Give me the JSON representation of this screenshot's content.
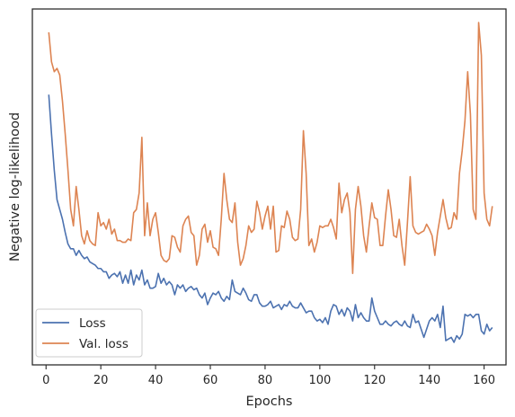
{
  "chart_data": {
    "type": "line",
    "xlabel": "Epochs",
    "ylabel": "Negative log-likelihood",
    "xlim": [
      -5,
      168
    ],
    "ylim": [
      0,
      1
    ],
    "xticks": [
      0,
      20,
      40,
      60,
      80,
      100,
      120,
      140,
      160
    ],
    "yticks_labeled": false,
    "grid": false,
    "legend": "lower-left",
    "colors": {
      "Loss": "#4c72b0",
      "Val. loss": "#dd8452"
    },
    "series": [
      {
        "name": "Loss",
        "points": [
          [
            1,
            0.78
          ],
          [
            2,
            0.66
          ],
          [
            3,
            0.55
          ],
          [
            4,
            0.46
          ],
          [
            5,
            0.43
          ],
          [
            6,
            0.4
          ],
          [
            7,
            0.36
          ],
          [
            8,
            0.325
          ],
          [
            9,
            0.31
          ],
          [
            10,
            0.31
          ],
          [
            11,
            0.29
          ],
          [
            12,
            0.305
          ],
          [
            13,
            0.29
          ],
          [
            14,
            0.28
          ],
          [
            15,
            0.285
          ],
          [
            16,
            0.27
          ],
          [
            17,
            0.265
          ],
          [
            18,
            0.26
          ],
          [
            19,
            0.25
          ],
          [
            20,
            0.25
          ],
          [
            21,
            0.24
          ],
          [
            22,
            0.24
          ],
          [
            23,
            0.22
          ],
          [
            24,
            0.23
          ],
          [
            25,
            0.235
          ],
          [
            26,
            0.225
          ],
          [
            27,
            0.24
          ],
          [
            28,
            0.205
          ],
          [
            29,
            0.23
          ],
          [
            30,
            0.205
          ],
          [
            31,
            0.245
          ],
          [
            32,
            0.2
          ],
          [
            33,
            0.23
          ],
          [
            34,
            0.215
          ],
          [
            35,
            0.245
          ],
          [
            36,
            0.2
          ],
          [
            37,
            0.215
          ],
          [
            38,
            0.19
          ],
          [
            39,
            0.19
          ],
          [
            40,
            0.195
          ],
          [
            41,
            0.235
          ],
          [
            42,
            0.205
          ],
          [
            43,
            0.22
          ],
          [
            44,
            0.2
          ],
          [
            45,
            0.21
          ],
          [
            46,
            0.2
          ],
          [
            47,
            0.17
          ],
          [
            48,
            0.2
          ],
          [
            49,
            0.19
          ],
          [
            50,
            0.2
          ],
          [
            51,
            0.18
          ],
          [
            52,
            0.19
          ],
          [
            53,
            0.195
          ],
          [
            54,
            0.185
          ],
          [
            55,
            0.19
          ],
          [
            56,
            0.17
          ],
          [
            57,
            0.16
          ],
          [
            58,
            0.175
          ],
          [
            59,
            0.14
          ],
          [
            60,
            0.16
          ],
          [
            61,
            0.175
          ],
          [
            62,
            0.17
          ],
          [
            63,
            0.18
          ],
          [
            64,
            0.16
          ],
          [
            65,
            0.15
          ],
          [
            66,
            0.165
          ],
          [
            67,
            0.155
          ],
          [
            68,
            0.215
          ],
          [
            69,
            0.18
          ],
          [
            70,
            0.175
          ],
          [
            71,
            0.17
          ],
          [
            72,
            0.19
          ],
          [
            73,
            0.175
          ],
          [
            74,
            0.155
          ],
          [
            75,
            0.15
          ],
          [
            76,
            0.17
          ],
          [
            77,
            0.17
          ],
          [
            78,
            0.145
          ],
          [
            79,
            0.135
          ],
          [
            80,
            0.135
          ],
          [
            81,
            0.14
          ],
          [
            82,
            0.15
          ],
          [
            83,
            0.13
          ],
          [
            84,
            0.135
          ],
          [
            85,
            0.14
          ],
          [
            86,
            0.125
          ],
          [
            87,
            0.14
          ],
          [
            88,
            0.135
          ],
          [
            89,
            0.15
          ],
          [
            90,
            0.135
          ],
          [
            91,
            0.13
          ],
          [
            92,
            0.13
          ],
          [
            93,
            0.145
          ],
          [
            94,
            0.13
          ],
          [
            95,
            0.115
          ],
          [
            96,
            0.12
          ],
          [
            97,
            0.12
          ],
          [
            98,
            0.1
          ],
          [
            99,
            0.09
          ],
          [
            100,
            0.095
          ],
          [
            101,
            0.085
          ],
          [
            102,
            0.1
          ],
          [
            103,
            0.08
          ],
          [
            104,
            0.12
          ],
          [
            105,
            0.14
          ],
          [
            106,
            0.135
          ],
          [
            107,
            0.11
          ],
          [
            108,
            0.125
          ],
          [
            109,
            0.105
          ],
          [
            110,
            0.13
          ],
          [
            111,
            0.12
          ],
          [
            112,
            0.09
          ],
          [
            113,
            0.14
          ],
          [
            114,
            0.1
          ],
          [
            115,
            0.115
          ],
          [
            116,
            0.1
          ],
          [
            117,
            0.09
          ],
          [
            118,
            0.09
          ],
          [
            119,
            0.16
          ],
          [
            120,
            0.12
          ],
          [
            121,
            0.1
          ],
          [
            122,
            0.08
          ],
          [
            123,
            0.08
          ],
          [
            124,
            0.09
          ],
          [
            125,
            0.08
          ],
          [
            126,
            0.075
          ],
          [
            127,
            0.085
          ],
          [
            128,
            0.09
          ],
          [
            129,
            0.08
          ],
          [
            130,
            0.075
          ],
          [
            131,
            0.09
          ],
          [
            132,
            0.075
          ],
          [
            133,
            0.07
          ],
          [
            134,
            0.11
          ],
          [
            135,
            0.085
          ],
          [
            136,
            0.09
          ],
          [
            137,
            0.065
          ],
          [
            138,
            0.04
          ],
          [
            139,
            0.065
          ],
          [
            140,
            0.09
          ],
          [
            141,
            0.1
          ],
          [
            142,
            0.09
          ],
          [
            143,
            0.11
          ],
          [
            144,
            0.07
          ],
          [
            145,
            0.135
          ],
          [
            146,
            0.03
          ],
          [
            147,
            0.035
          ],
          [
            148,
            0.04
          ],
          [
            149,
            0.025
          ],
          [
            150,
            0.045
          ],
          [
            151,
            0.035
          ],
          [
            152,
            0.05
          ],
          [
            153,
            0.11
          ],
          [
            154,
            0.105
          ],
          [
            155,
            0.11
          ],
          [
            156,
            0.1
          ],
          [
            157,
            0.11
          ],
          [
            158,
            0.11
          ],
          [
            159,
            0.06
          ],
          [
            160,
            0.05
          ],
          [
            161,
            0.08
          ],
          [
            162,
            0.06
          ],
          [
            163,
            0.07
          ]
        ]
      },
      {
        "name": "Val. loss",
        "points": [
          [
            1,
            0.97
          ],
          [
            2,
            0.88
          ],
          [
            3,
            0.85
          ],
          [
            4,
            0.86
          ],
          [
            5,
            0.84
          ],
          [
            6,
            0.76
          ],
          [
            7,
            0.66
          ],
          [
            8,
            0.55
          ],
          [
            9,
            0.43
          ],
          [
            10,
            0.38
          ],
          [
            11,
            0.5
          ],
          [
            12,
            0.43
          ],
          [
            13,
            0.35
          ],
          [
            14,
            0.325
          ],
          [
            15,
            0.365
          ],
          [
            16,
            0.335
          ],
          [
            17,
            0.325
          ],
          [
            18,
            0.32
          ],
          [
            19,
            0.42
          ],
          [
            20,
            0.38
          ],
          [
            21,
            0.39
          ],
          [
            22,
            0.37
          ],
          [
            23,
            0.4
          ],
          [
            24,
            0.355
          ],
          [
            25,
            0.37
          ],
          [
            26,
            0.335
          ],
          [
            27,
            0.335
          ],
          [
            28,
            0.33
          ],
          [
            29,
            0.33
          ],
          [
            30,
            0.34
          ],
          [
            31,
            0.335
          ],
          [
            32,
            0.42
          ],
          [
            33,
            0.43
          ],
          [
            34,
            0.48
          ],
          [
            35,
            0.65
          ],
          [
            36,
            0.35
          ],
          [
            37,
            0.45
          ],
          [
            38,
            0.35
          ],
          [
            39,
            0.4
          ],
          [
            40,
            0.42
          ],
          [
            41,
            0.36
          ],
          [
            42,
            0.29
          ],
          [
            43,
            0.275
          ],
          [
            44,
            0.27
          ],
          [
            45,
            0.28
          ],
          [
            46,
            0.35
          ],
          [
            47,
            0.345
          ],
          [
            48,
            0.315
          ],
          [
            49,
            0.3
          ],
          [
            50,
            0.38
          ],
          [
            51,
            0.4
          ],
          [
            52,
            0.41
          ],
          [
            53,
            0.36
          ],
          [
            54,
            0.35
          ],
          [
            55,
            0.26
          ],
          [
            56,
            0.29
          ],
          [
            57,
            0.37
          ],
          [
            58,
            0.385
          ],
          [
            59,
            0.33
          ],
          [
            60,
            0.365
          ],
          [
            61,
            0.315
          ],
          [
            62,
            0.31
          ],
          [
            63,
            0.29
          ],
          [
            64,
            0.4
          ],
          [
            65,
            0.54
          ],
          [
            66,
            0.46
          ],
          [
            67,
            0.4
          ],
          [
            68,
            0.39
          ],
          [
            69,
            0.45
          ],
          [
            70,
            0.33
          ],
          [
            71,
            0.26
          ],
          [
            72,
            0.28
          ],
          [
            73,
            0.32
          ],
          [
            74,
            0.38
          ],
          [
            75,
            0.36
          ],
          [
            76,
            0.37
          ],
          [
            77,
            0.455
          ],
          [
            78,
            0.42
          ],
          [
            79,
            0.37
          ],
          [
            80,
            0.41
          ],
          [
            81,
            0.44
          ],
          [
            82,
            0.37
          ],
          [
            83,
            0.44
          ],
          [
            84,
            0.3
          ],
          [
            85,
            0.305
          ],
          [
            86,
            0.38
          ],
          [
            87,
            0.375
          ],
          [
            88,
            0.425
          ],
          [
            89,
            0.4
          ],
          [
            90,
            0.345
          ],
          [
            91,
            0.335
          ],
          [
            92,
            0.34
          ],
          [
            93,
            0.43
          ],
          [
            94,
            0.67
          ],
          [
            95,
            0.54
          ],
          [
            96,
            0.32
          ],
          [
            97,
            0.34
          ],
          [
            98,
            0.3
          ],
          [
            99,
            0.33
          ],
          [
            100,
            0.38
          ],
          [
            101,
            0.375
          ],
          [
            102,
            0.38
          ],
          [
            103,
            0.38
          ],
          [
            104,
            0.4
          ],
          [
            105,
            0.375
          ],
          [
            106,
            0.34
          ],
          [
            107,
            0.51
          ],
          [
            108,
            0.42
          ],
          [
            109,
            0.46
          ],
          [
            110,
            0.48
          ],
          [
            111,
            0.42
          ],
          [
            112,
            0.235
          ],
          [
            113,
            0.43
          ],
          [
            114,
            0.5
          ],
          [
            115,
            0.44
          ],
          [
            116,
            0.35
          ],
          [
            117,
            0.3
          ],
          [
            118,
            0.38
          ],
          [
            119,
            0.45
          ],
          [
            120,
            0.405
          ],
          [
            121,
            0.4
          ],
          [
            122,
            0.32
          ],
          [
            123,
            0.32
          ],
          [
            124,
            0.41
          ],
          [
            125,
            0.49
          ],
          [
            126,
            0.43
          ],
          [
            127,
            0.35
          ],
          [
            128,
            0.345
          ],
          [
            129,
            0.4
          ],
          [
            130,
            0.32
          ],
          [
            131,
            0.26
          ],
          [
            132,
            0.39
          ],
          [
            133,
            0.53
          ],
          [
            134,
            0.38
          ],
          [
            135,
            0.36
          ],
          [
            136,
            0.355
          ],
          [
            137,
            0.36
          ],
          [
            138,
            0.365
          ],
          [
            139,
            0.385
          ],
          [
            140,
            0.37
          ],
          [
            141,
            0.35
          ],
          [
            142,
            0.29
          ],
          [
            143,
            0.36
          ],
          [
            144,
            0.41
          ],
          [
            145,
            0.46
          ],
          [
            146,
            0.405
          ],
          [
            147,
            0.37
          ],
          [
            148,
            0.375
          ],
          [
            149,
            0.42
          ],
          [
            150,
            0.4
          ],
          [
            151,
            0.54
          ],
          [
            152,
            0.61
          ],
          [
            153,
            0.7
          ],
          [
            154,
            0.85
          ],
          [
            155,
            0.72
          ],
          [
            156,
            0.43
          ],
          [
            157,
            0.4
          ],
          [
            158,
            1.0
          ],
          [
            159,
            0.9
          ],
          [
            160,
            0.48
          ],
          [
            161,
            0.4
          ],
          [
            162,
            0.38
          ],
          [
            163,
            0.44
          ]
        ]
      }
    ]
  }
}
